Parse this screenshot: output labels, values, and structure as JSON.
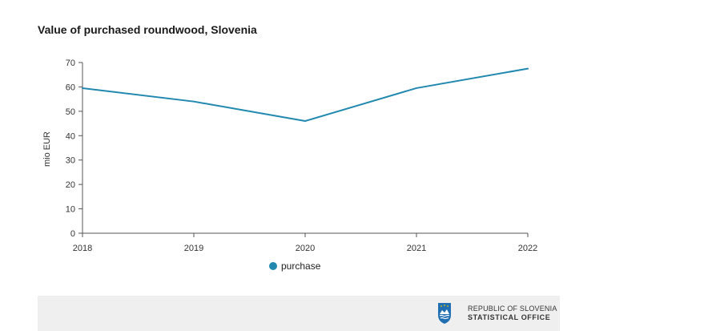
{
  "chart_data": {
    "type": "line",
    "title": "Value of purchased roundwood, Slovenia",
    "xlabel": "",
    "ylabel": "mio EUR",
    "categories": [
      "2018",
      "2019",
      "2020",
      "2021",
      "2022"
    ],
    "series": [
      {
        "name": "purchase",
        "values": [
          59.5,
          54,
          46,
          59.5,
          67.5
        ],
        "color": "#2188b0"
      }
    ],
    "ylim": [
      0,
      70
    ],
    "yticks": [
      0,
      10,
      20,
      30,
      40,
      50,
      60,
      70
    ],
    "grid": false,
    "legend": "bottom-center"
  },
  "footer": {
    "org_line1": "REPUBLIC OF SLOVENIA",
    "org_line2": "STATISTICAL OFFICE",
    "logo_icon": "slovenia-coat-of-arms-icon"
  }
}
